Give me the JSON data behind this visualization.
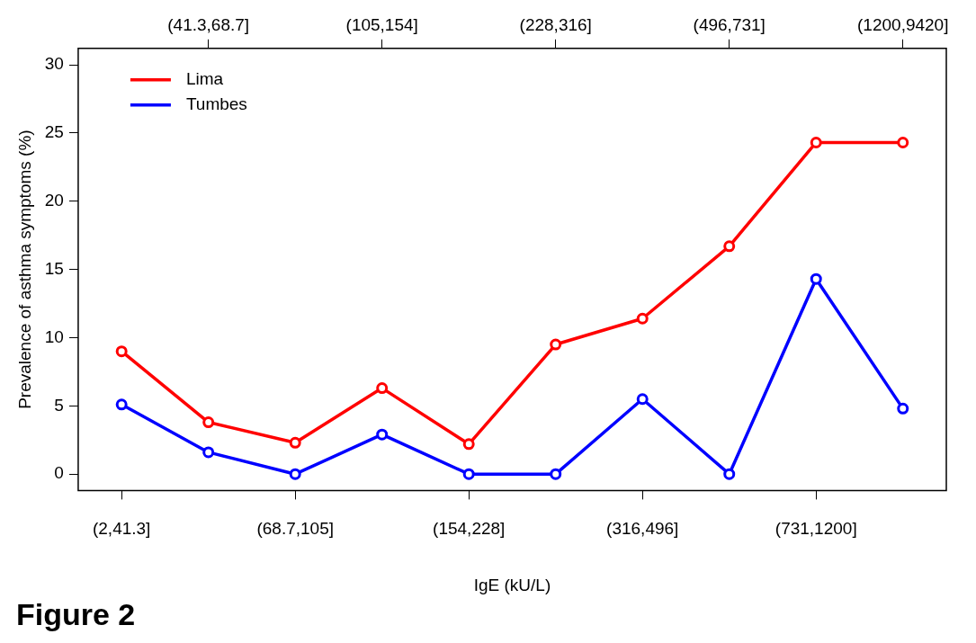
{
  "chart_data": {
    "type": "line",
    "xlabel": "IgE (kU/L)",
    "ylabel": "Prevalence of asthma symptoms (%)",
    "categories": [
      "(2,41.3]",
      "(41.3,68.7]",
      "(68.7,105]",
      "(105,154]",
      "(154,228]",
      "(228,316]",
      "(316,496]",
      "(496,731]",
      "(731,1200]",
      "(1200,9420]"
    ],
    "series": [
      {
        "name": "Lima",
        "color": "#ff0000",
        "values": [
          9.0,
          3.8,
          2.3,
          6.3,
          2.2,
          9.5,
          11.4,
          16.7,
          24.3,
          24.3
        ]
      },
      {
        "name": "Tumbes",
        "color": "#0000ff",
        "values": [
          5.1,
          1.6,
          0,
          2.9,
          0,
          0,
          5.5,
          0,
          14.3,
          4.8
        ]
      }
    ],
    "ylim": [
      -1.2,
      31.2
    ],
    "yticks": [
      0,
      5,
      10,
      15,
      20,
      25,
      30
    ],
    "grid": false,
    "legend": "top left",
    "marker": "circle",
    "line_style": "solid",
    "annotations": [
      "Figure 2"
    ]
  }
}
